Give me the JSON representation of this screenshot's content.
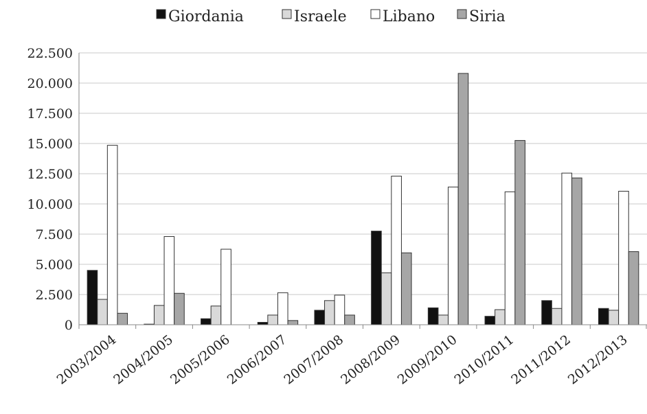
{
  "chart_data": {
    "type": "bar",
    "categories": [
      "2003/2004",
      "2004/2005",
      "2005/2006",
      "2006/2007",
      "2007/2008",
      "2008/2009",
      "2009/2010",
      "2010/2011",
      "2011/2012",
      "2012/2013"
    ],
    "series": [
      {
        "name": "Giordania",
        "color": "#111111",
        "values": [
          4500,
          50,
          500,
          200,
          1200,
          7750,
          1400,
          700,
          2000,
          1350
        ]
      },
      {
        "name": "Israele",
        "color": "#d9d9d9",
        "values": [
          2100,
          1600,
          1550,
          800,
          2000,
          4300,
          800,
          1250,
          1350,
          1200
        ]
      },
      {
        "name": "Libano",
        "color": "#ffffff",
        "values": [
          14850,
          7300,
          6250,
          2650,
          2450,
          12300,
          11400,
          11000,
          12550,
          11050
        ]
      },
      {
        "name": "Siria",
        "color": "#a6a6a6",
        "values": [
          950,
          2600,
          0,
          350,
          800,
          5950,
          20800,
          15250,
          12150,
          6050
        ]
      }
    ],
    "yticks": [
      "0",
      "2.500",
      "5.000",
      "7.500",
      "10.000",
      "12.500",
      "15.000",
      "17.500",
      "20.000",
      "22.500"
    ],
    "ylim": [
      0,
      22500
    ],
    "title": "",
    "xlabel": "",
    "ylabel": "",
    "grid": true,
    "legend_position": "top"
  }
}
